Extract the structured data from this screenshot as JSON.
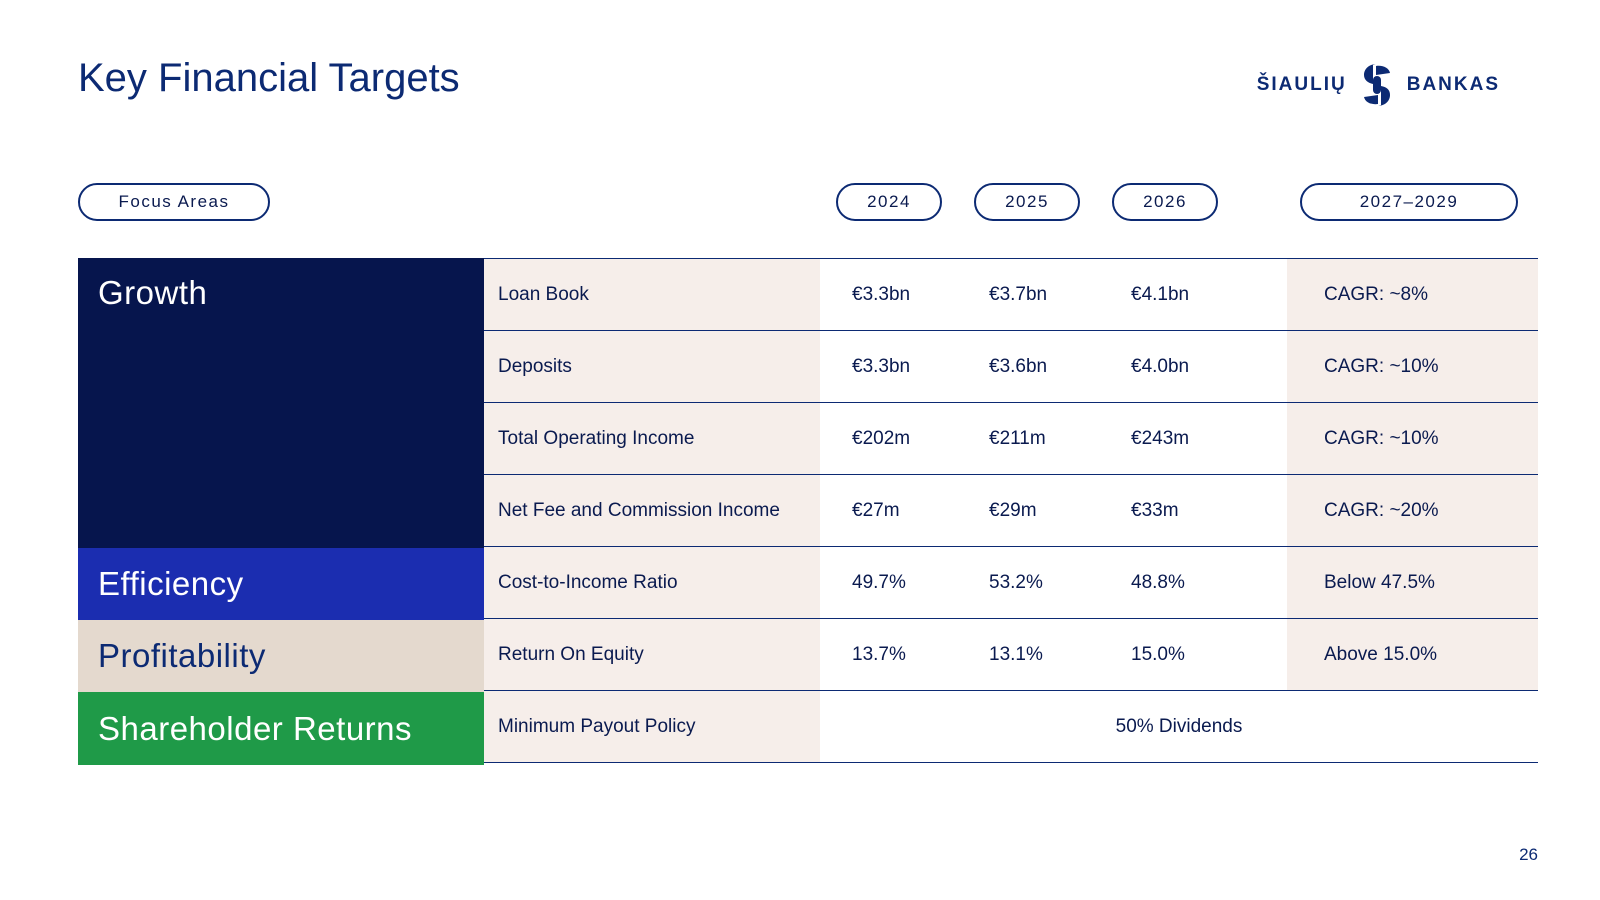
{
  "title": "Key Financial Targets",
  "logo": {
    "left_word": "ŠIAULIŲ",
    "right_word": "BANKAS",
    "brand_color": "#0c2a73"
  },
  "headers": {
    "focus": "Focus Areas",
    "y2024": "2024",
    "y2025": "2025",
    "y2026": "2026",
    "ylong": "2027–2029"
  },
  "focus_areas": {
    "growth": "Growth",
    "efficiency": "Efficiency",
    "profitability": "Profitability",
    "shareholder": "Shareholder Returns"
  },
  "colors": {
    "growth": "#06154d",
    "efficiency": "#1b2db0",
    "profitability": "#e4d9ce",
    "shareholder": "#1f9a48",
    "metric_bg": "#f6eeea"
  },
  "rows": [
    {
      "metric": "Loan Book",
      "y2024": "€3.3bn",
      "y2025": "€3.7bn",
      "y2026": "€4.1bn",
      "ylong": "CAGR: ~8%"
    },
    {
      "metric": "Deposits",
      "y2024": "€3.3bn",
      "y2025": "€3.6bn",
      "y2026": "€4.0bn",
      "ylong": "CAGR: ~10%"
    },
    {
      "metric": "Total Operating Income",
      "y2024": "€202m",
      "y2025": "€211m",
      "y2026": "€243m",
      "ylong": "CAGR: ~10%"
    },
    {
      "metric": "Net Fee and Commission Income",
      "y2024": "€27m",
      "y2025": "€29m",
      "y2026": "€33m",
      "ylong": "CAGR: ~20%"
    },
    {
      "metric": "Cost-to-Income Ratio",
      "y2024": "49.7%",
      "y2025": "53.2%",
      "y2026": "48.8%",
      "ylong": "Below 47.5%"
    },
    {
      "metric": "Return On Equity",
      "y2024": "13.7%",
      "y2025": "13.1%",
      "y2026": "15.0%",
      "ylong": "Above 15.0%"
    },
    {
      "metric": "Minimum Payout Policy",
      "span": "50% Dividends"
    }
  ],
  "page_number": "26"
}
